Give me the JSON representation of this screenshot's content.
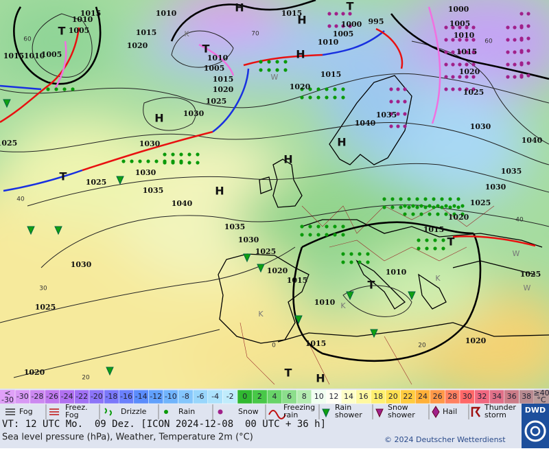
{
  "map": {
    "isobar_labels": [
      1015,
      1010,
      1005,
      1015,
      1010,
      1005,
      1015,
      1020,
      1010,
      1015,
      1005,
      1000,
      995,
      1010,
      1000,
      1005,
      1010,
      1015,
      1020,
      1025,
      1030,
      1040,
      1035,
      1030,
      1025,
      1020,
      1015,
      1010,
      1005,
      1015,
      1020,
      1025,
      1030,
      1020,
      1015,
      1040,
      1035,
      1030,
      1030,
      1035,
      1040,
      1025,
      1025,
      1035,
      1030,
      1025,
      1020,
      1015,
      1010,
      1010,
      1015,
      1020,
      1025,
      1030,
      1025,
      1020
    ],
    "pressure_centers": [
      "H",
      "H",
      "T",
      "T",
      "H",
      "T",
      "H",
      "H",
      "H",
      "T",
      "T",
      "T",
      "H",
      "H",
      "T"
    ],
    "isotherm_labels": [
      70,
      60,
      60,
      40,
      40,
      30,
      20,
      20,
      0
    ],
    "air_mass_labels": [
      "K",
      "W",
      "K",
      "W",
      "K",
      "W",
      "K"
    ]
  },
  "color_scale": {
    "low_label": [
      "<",
      "-30"
    ],
    "low_color": "#e0a0f8",
    "high_label": [
      "≥40",
      "°C"
    ],
    "high_color": "#b89a9a",
    "steps": [
      {
        "label": -30,
        "color": "#d898f4"
      },
      {
        "label": -28,
        "color": "#cc88f0"
      },
      {
        "label": -26,
        "color": "#c078ee"
      },
      {
        "label": -24,
        "color": "#b070f0"
      },
      {
        "label": -22,
        "color": "#a070f4"
      },
      {
        "label": -20,
        "color": "#8c74f8"
      },
      {
        "label": -18,
        "color": "#7a78fa"
      },
      {
        "label": -16,
        "color": "#6a80fc"
      },
      {
        "label": -14,
        "color": "#5a8cfc"
      },
      {
        "label": -12,
        "color": "#60a0fc"
      },
      {
        "label": -10,
        "color": "#70b4fc"
      },
      {
        "label": -8,
        "color": "#84c6fc"
      },
      {
        "label": -6,
        "color": "#98d6fc"
      },
      {
        "label": -4,
        "color": "#ace2fc"
      },
      {
        "label": -2,
        "color": "#c0ecfc"
      },
      {
        "label": 0,
        "color": "#30b830"
      },
      {
        "label": 2,
        "color": "#48c848"
      },
      {
        "label": 4,
        "color": "#68d468"
      },
      {
        "label": 6,
        "color": "#8cde8c"
      },
      {
        "label": 8,
        "color": "#b4ecb0"
      },
      {
        "label": 10,
        "color": "#f0fff0"
      },
      {
        "label": 12,
        "color": "#fffff4"
      },
      {
        "label": 14,
        "color": "#ffffc8"
      },
      {
        "label": 16,
        "color": "#fff8a0"
      },
      {
        "label": 18,
        "color": "#fff070"
      },
      {
        "label": 20,
        "color": "#ffe050"
      },
      {
        "label": 22,
        "color": "#ffcc40"
      },
      {
        "label": 24,
        "color": "#ffb038"
      },
      {
        "label": 26,
        "color": "#ff9848"
      },
      {
        "label": 28,
        "color": "#ff8060"
      },
      {
        "label": 30,
        "color": "#ff6868"
      },
      {
        "label": 32,
        "color": "#f06880"
      },
      {
        "label": 34,
        "color": "#e07088"
      },
      {
        "label": 36,
        "color": "#cc7c88"
      },
      {
        "label": 38,
        "color": "#b88a90"
      }
    ]
  },
  "weather_legend": [
    [
      "Fog"
    ],
    [
      "Freez.",
      "Fog"
    ],
    [
      "Drizzle"
    ],
    [
      "Rain"
    ],
    [
      "Snow"
    ],
    [
      "Freezing",
      "rain"
    ],
    [
      "Rain",
      "shower"
    ],
    [
      "Snow",
      "shower"
    ],
    [
      "Hail"
    ],
    [
      "Thunder",
      "storm"
    ]
  ],
  "footer": {
    "valid_time": "VT: 12 UTC Mo.  09 Dez. [ICON 2024-12-08  00 UTC + 36 h]",
    "description": "Sea level pressure (hPa), Weather, Temperature 2m (°C)",
    "copyright": "© 2024 Deutscher Wetterdienst",
    "logo": "DWD"
  }
}
